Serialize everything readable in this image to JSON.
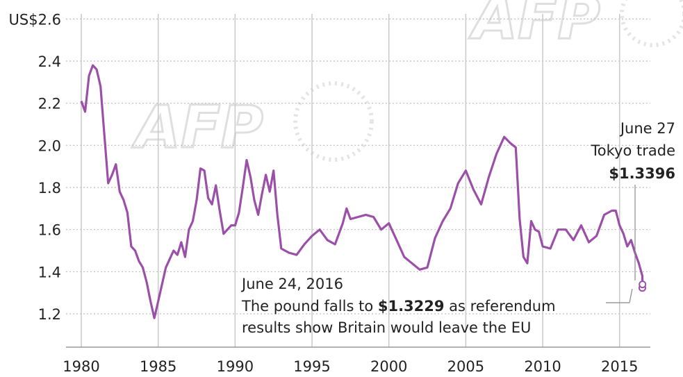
{
  "chart_data": {
    "type": "line",
    "ylabel_prefix": "US$",
    "y_tick_labels": [
      "US$2.6",
      "2.4",
      "2.2",
      "2.0",
      "1.8",
      "1.6",
      "1.4",
      "1.2"
    ],
    "y_ticks": [
      2.6,
      2.4,
      2.2,
      2.0,
      1.8,
      1.6,
      1.4,
      1.2
    ],
    "x_ticks": [
      1980,
      1985,
      1990,
      1995,
      2000,
      2005,
      2010,
      2015
    ],
    "xlim": [
      1980,
      2017
    ],
    "ylim": [
      1.1,
      2.6
    ],
    "grid": "vertical solid, horizontal dotted",
    "series": [
      {
        "color": "#9b4fa8",
        "x": [
          1980.0,
          1980.25,
          1980.5,
          1980.75,
          1981.0,
          1981.25,
          1981.5,
          1981.75,
          1982.0,
          1982.25,
          1982.5,
          1982.75,
          1983.0,
          1983.25,
          1983.5,
          1983.75,
          1984.0,
          1984.25,
          1984.5,
          1984.75,
          1985.0,
          1985.25,
          1985.5,
          1985.75,
          1986.0,
          1986.25,
          1986.5,
          1986.75,
          1987.0,
          1987.25,
          1987.5,
          1987.75,
          1988.0,
          1988.25,
          1988.5,
          1988.75,
          1989.0,
          1989.25,
          1989.5,
          1989.75,
          1990.0,
          1990.25,
          1990.5,
          1990.75,
          1991.0,
          1991.25,
          1991.5,
          1991.75,
          1992.0,
          1992.25,
          1992.5,
          1992.75,
          1993.0,
          1993.5,
          1994.0,
          1994.5,
          1995.0,
          1995.5,
          1996.0,
          1996.5,
          1997.0,
          1997.25,
          1997.5,
          1998.0,
          1998.5,
          1999.0,
          1999.5,
          2000.0,
          2000.5,
          2001.0,
          2001.5,
          2002.0,
          2002.5,
          2003.0,
          2003.5,
          2004.0,
          2004.5,
          2005.0,
          2005.5,
          2006.0,
          2006.5,
          2007.0,
          2007.5,
          2007.9,
          2008.25,
          2008.5,
          2008.75,
          2009.0,
          2009.25,
          2009.5,
          2009.75,
          2010.0,
          2010.5,
          2011.0,
          2011.5,
          2012.0,
          2012.5,
          2013.0,
          2013.5,
          2014.0,
          2014.5,
          2014.75,
          2015.0,
          2015.25,
          2015.5,
          2015.75,
          2016.0,
          2016.25,
          2016.48,
          2016.49
        ],
        "y": [
          2.21,
          2.16,
          2.33,
          2.38,
          2.36,
          2.28,
          2.05,
          1.82,
          1.86,
          1.91,
          1.78,
          1.74,
          1.68,
          1.52,
          1.5,
          1.45,
          1.42,
          1.35,
          1.26,
          1.18,
          1.26,
          1.34,
          1.42,
          1.46,
          1.5,
          1.48,
          1.54,
          1.47,
          1.6,
          1.64,
          1.74,
          1.89,
          1.88,
          1.75,
          1.72,
          1.81,
          1.69,
          1.58,
          1.6,
          1.62,
          1.62,
          1.68,
          1.8,
          1.93,
          1.85,
          1.74,
          1.67,
          1.77,
          1.86,
          1.78,
          1.88,
          1.67,
          1.51,
          1.49,
          1.48,
          1.53,
          1.57,
          1.6,
          1.55,
          1.53,
          1.63,
          1.7,
          1.65,
          1.66,
          1.67,
          1.66,
          1.6,
          1.63,
          1.55,
          1.47,
          1.44,
          1.41,
          1.42,
          1.56,
          1.64,
          1.7,
          1.82,
          1.88,
          1.79,
          1.72,
          1.85,
          1.96,
          2.04,
          2.01,
          1.99,
          1.65,
          1.47,
          1.44,
          1.64,
          1.6,
          1.59,
          1.52,
          1.51,
          1.6,
          1.6,
          1.55,
          1.62,
          1.54,
          1.57,
          1.67,
          1.69,
          1.69,
          1.62,
          1.58,
          1.52,
          1.55,
          1.49,
          1.44,
          1.38,
          1.33
        ]
      }
    ],
    "markers": [
      {
        "x": 2016.48,
        "y": 1.3229
      },
      {
        "x": 2016.49,
        "y": 1.3396
      }
    ],
    "annotations": [
      {
        "lines": [
          "June 27",
          "Tokyo trade"
        ],
        "bold_line": "$1.3396"
      },
      {
        "lines": [
          "June 24, 2016"
        ],
        "prefix": "The pound falls to ",
        "bold": "$1.3229",
        "suffix": " as referendum",
        "line3": "results show Britain would leave the EU"
      }
    ]
  },
  "watermark": "AFP"
}
